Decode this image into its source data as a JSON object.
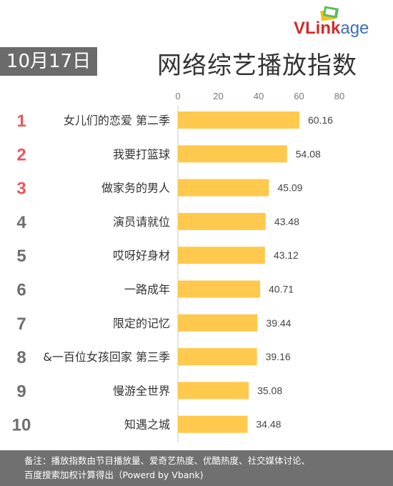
{
  "header": {
    "date": "10月17日",
    "title": "网络综艺播放指数",
    "logo_part1": "VLink",
    "logo_part2": "age"
  },
  "colors": {
    "bar": "#ffc94d",
    "rank_top": "#e8575c",
    "rank_rest": "#6e6e6e",
    "badge": "#6b6b6b"
  },
  "chart_data": {
    "type": "bar",
    "orientation": "horizontal",
    "categories": [
      "女儿们的恋爱 第二季",
      "我要打篮球",
      "做家务的男人",
      "演员请就位",
      "哎呀好身材",
      "一路成年",
      "限定的记忆",
      "一百位女孩回家 第三季",
      "慢游全世界",
      "知遇之城"
    ],
    "category_labels": [
      "女儿们的恋爱 第二季",
      "我要打篮球",
      "做家务的男人",
      "演员请就位",
      "哎呀好身材",
      "一路成年",
      "限定的记忆",
      "&一百位女孩回家 第三季",
      "慢游全世界",
      "知遇之城"
    ],
    "ranks": [
      "1",
      "2",
      "3",
      "4",
      "5",
      "6",
      "7",
      "8",
      "9",
      "10"
    ],
    "values": [
      60.16,
      54.08,
      45.09,
      43.48,
      43.12,
      40.71,
      39.44,
      39.16,
      35.08,
      34.48
    ],
    "value_labels": [
      "60.16",
      "54.08",
      "45.09",
      "43.48",
      "43.12",
      "40.71",
      "39.44",
      "39.16",
      "35.08",
      "34.48"
    ],
    "xlim": [
      0,
      80
    ],
    "xticks": [
      "0",
      "20",
      "40",
      "60",
      "80"
    ],
    "axis_position": "top",
    "grid": false
  },
  "footer": {
    "line1": "备注：播放指数由节目播放量、爱奇艺热度、优酷热度、社交媒体讨论、",
    "line2": "百度搜索加权计算得出（Powerd by Vbank)"
  }
}
